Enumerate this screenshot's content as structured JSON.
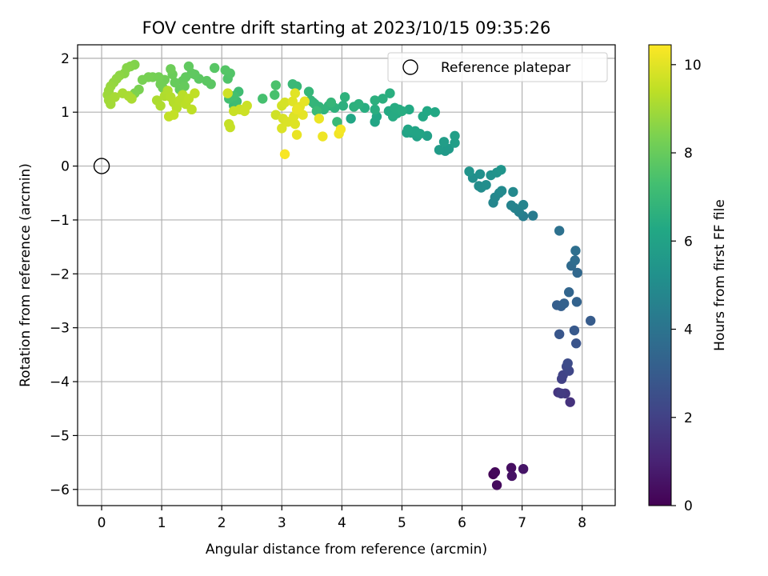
{
  "chart_data": {
    "type": "scatter",
    "title": "FOV centre drift starting at 2023/10/15 09:35:26",
    "xlabel": "Angular distance from reference (arcmin)",
    "ylabel": "Rotation from reference (arcmin)",
    "xlim": [
      -0.4,
      8.55
    ],
    "ylim": [
      -6.3,
      2.25
    ],
    "xticks": [
      "0",
      "1",
      "2",
      "3",
      "4",
      "5",
      "6",
      "7",
      "8"
    ],
    "yticks": [
      "2",
      "1",
      "0",
      "−1",
      "−2",
      "−3",
      "−4",
      "−5",
      "−6"
    ],
    "grid": true,
    "legend": {
      "position": "top-right",
      "label": "Reference platepar"
    },
    "reference_point": {
      "x": 0,
      "y": 0
    },
    "colorbar": {
      "label": "Hours from first FF file",
      "range": [
        0,
        10.45
      ],
      "ticks": [
        "0",
        "2",
        "4",
        "6",
        "8",
        "10"
      ],
      "colormap": "viridis",
      "colors": [
        "#440154",
        "#482475",
        "#414487",
        "#355f8d",
        "#2a788e",
        "#21918c",
        "#22a884",
        "#44bf70",
        "#7ad151",
        "#bddf26",
        "#fde725"
      ]
    },
    "points": [
      {
        "x": 6.52,
        "y": -5.72,
        "c": 0.1
      },
      {
        "x": 6.55,
        "y": -5.68,
        "c": 0.2
      },
      {
        "x": 6.58,
        "y": -5.92,
        "c": 0.3
      },
      {
        "x": 6.82,
        "y": -5.6,
        "c": 0.4
      },
      {
        "x": 6.83,
        "y": -5.75,
        "c": 0.5
      },
      {
        "x": 7.02,
        "y": -5.62,
        "c": 0.6
      },
      {
        "x": 7.8,
        "y": -4.38,
        "c": 1.5
      },
      {
        "x": 7.6,
        "y": -4.2,
        "c": 1.6
      },
      {
        "x": 7.72,
        "y": -4.22,
        "c": 1.7
      },
      {
        "x": 7.65,
        "y": -4.22,
        "c": 1.8
      },
      {
        "x": 7.66,
        "y": -3.95,
        "c": 2.0
      },
      {
        "x": 7.68,
        "y": -3.88,
        "c": 2.1
      },
      {
        "x": 7.78,
        "y": -3.8,
        "c": 2.2
      },
      {
        "x": 7.74,
        "y": -3.72,
        "c": 2.3
      },
      {
        "x": 7.76,
        "y": -3.66,
        "c": 2.4
      },
      {
        "x": 7.9,
        "y": -3.29,
        "c": 2.7
      },
      {
        "x": 7.62,
        "y": -3.12,
        "c": 2.8
      },
      {
        "x": 7.87,
        "y": -3.05,
        "c": 2.9
      },
      {
        "x": 8.14,
        "y": -2.87,
        "c": 3.0
      },
      {
        "x": 7.58,
        "y": -2.58,
        "c": 3.1
      },
      {
        "x": 7.65,
        "y": -2.6,
        "c": 3.15
      },
      {
        "x": 7.7,
        "y": -2.55,
        "c": 3.2
      },
      {
        "x": 7.91,
        "y": -2.52,
        "c": 3.3
      },
      {
        "x": 7.78,
        "y": -2.34,
        "c": 3.4
      },
      {
        "x": 7.92,
        "y": -1.98,
        "c": 3.5
      },
      {
        "x": 7.82,
        "y": -1.85,
        "c": 3.6
      },
      {
        "x": 7.88,
        "y": -1.75,
        "c": 3.7
      },
      {
        "x": 7.89,
        "y": -1.57,
        "c": 3.8
      },
      {
        "x": 7.62,
        "y": -1.2,
        "c": 3.9
      },
      {
        "x": 7.18,
        "y": -0.92,
        "c": 4.3
      },
      {
        "x": 7.02,
        "y": -0.93,
        "c": 4.4
      },
      {
        "x": 6.95,
        "y": -0.85,
        "c": 4.5
      },
      {
        "x": 6.88,
        "y": -0.78,
        "c": 4.6
      },
      {
        "x": 6.82,
        "y": -0.73,
        "c": 4.65
      },
      {
        "x": 7.02,
        "y": -0.72,
        "c": 4.7
      },
      {
        "x": 6.52,
        "y": -0.68,
        "c": 4.75
      },
      {
        "x": 6.55,
        "y": -0.58,
        "c": 4.8
      },
      {
        "x": 6.62,
        "y": -0.5,
        "c": 4.85
      },
      {
        "x": 6.85,
        "y": -0.48,
        "c": 4.9
      },
      {
        "x": 6.66,
        "y": -0.46,
        "c": 4.95
      },
      {
        "x": 6.32,
        "y": -0.4,
        "c": 5.0
      },
      {
        "x": 6.28,
        "y": -0.37,
        "c": 5.05
      },
      {
        "x": 6.4,
        "y": -0.35,
        "c": 5.1
      },
      {
        "x": 6.18,
        "y": -0.22,
        "c": 5.15
      },
      {
        "x": 6.3,
        "y": -0.15,
        "c": 5.2
      },
      {
        "x": 6.48,
        "y": -0.17,
        "c": 5.25
      },
      {
        "x": 6.58,
        "y": -0.12,
        "c": 5.3
      },
      {
        "x": 6.12,
        "y": -0.1,
        "c": 5.35
      },
      {
        "x": 6.65,
        "y": -0.07,
        "c": 5.4
      },
      {
        "x": 5.72,
        "y": 0.28,
        "c": 5.6
      },
      {
        "x": 5.78,
        "y": 0.32,
        "c": 5.65
      },
      {
        "x": 5.62,
        "y": 0.3,
        "c": 5.7
      },
      {
        "x": 5.7,
        "y": 0.45,
        "c": 5.75
      },
      {
        "x": 5.88,
        "y": 0.43,
        "c": 5.8
      },
      {
        "x": 5.88,
        "y": 0.56,
        "c": 5.85
      },
      {
        "x": 5.42,
        "y": 0.56,
        "c": 5.9
      },
      {
        "x": 5.25,
        "y": 0.55,
        "c": 5.95
      },
      {
        "x": 5.15,
        "y": 0.62,
        "c": 6.0
      },
      {
        "x": 5.08,
        "y": 0.62,
        "c": 6.05
      },
      {
        "x": 5.22,
        "y": 0.65,
        "c": 6.08
      },
      {
        "x": 5.3,
        "y": 0.6,
        "c": 6.1
      },
      {
        "x": 5.1,
        "y": 0.68,
        "c": 6.12
      },
      {
        "x": 4.55,
        "y": 0.82,
        "c": 6.15
      },
      {
        "x": 4.58,
        "y": 0.92,
        "c": 6.18
      },
      {
        "x": 4.15,
        "y": 0.88,
        "c": 6.2
      },
      {
        "x": 5.35,
        "y": 0.92,
        "c": 6.22
      },
      {
        "x": 5.55,
        "y": 1.0,
        "c": 6.25
      },
      {
        "x": 5.42,
        "y": 1.02,
        "c": 6.28
      },
      {
        "x": 5.12,
        "y": 1.05,
        "c": 6.3
      },
      {
        "x": 4.78,
        "y": 1.02,
        "c": 6.32
      },
      {
        "x": 4.92,
        "y": 0.98,
        "c": 6.35
      },
      {
        "x": 4.85,
        "y": 0.92,
        "c": 6.38
      },
      {
        "x": 4.95,
        "y": 1.05,
        "c": 6.4
      },
      {
        "x": 4.88,
        "y": 1.08,
        "c": 6.42
      },
      {
        "x": 5.0,
        "y": 1.02,
        "c": 6.45
      },
      {
        "x": 4.55,
        "y": 1.05,
        "c": 6.48
      },
      {
        "x": 4.38,
        "y": 1.08,
        "c": 6.5
      },
      {
        "x": 4.8,
        "y": 1.35,
        "c": 6.52
      },
      {
        "x": 4.68,
        "y": 1.25,
        "c": 6.55
      },
      {
        "x": 4.55,
        "y": 1.22,
        "c": 6.58
      },
      {
        "x": 4.02,
        "y": 1.12,
        "c": 6.6
      },
      {
        "x": 4.2,
        "y": 1.1,
        "c": 6.62
      },
      {
        "x": 4.28,
        "y": 1.15,
        "c": 6.65
      },
      {
        "x": 4.05,
        "y": 1.28,
        "c": 6.68
      },
      {
        "x": 3.88,
        "y": 1.08,
        "c": 6.7
      },
      {
        "x": 3.78,
        "y": 1.12,
        "c": 6.72
      },
      {
        "x": 3.7,
        "y": 1.05,
        "c": 6.75
      },
      {
        "x": 3.62,
        "y": 1.1,
        "c": 6.78
      },
      {
        "x": 3.55,
        "y": 1.15,
        "c": 6.8
      },
      {
        "x": 3.52,
        "y": 1.18,
        "c": 6.82
      },
      {
        "x": 3.48,
        "y": 1.22,
        "c": 6.85
      },
      {
        "x": 3.82,
        "y": 1.18,
        "c": 6.88
      },
      {
        "x": 3.45,
        "y": 1.38,
        "c": 6.9
      },
      {
        "x": 3.25,
        "y": 1.48,
        "c": 6.95
      },
      {
        "x": 3.18,
        "y": 1.52,
        "c": 7.0
      },
      {
        "x": 3.92,
        "y": 0.82,
        "c": 7.02
      },
      {
        "x": 3.58,
        "y": 1.02,
        "c": 7.05
      },
      {
        "x": 2.2,
        "y": 1.12,
        "c": 7.1
      },
      {
        "x": 2.25,
        "y": 1.2,
        "c": 7.15
      },
      {
        "x": 2.28,
        "y": 1.38,
        "c": 7.2
      },
      {
        "x": 2.12,
        "y": 1.25,
        "c": 7.25
      },
      {
        "x": 2.2,
        "y": 1.3,
        "c": 7.3
      },
      {
        "x": 2.68,
        "y": 1.25,
        "c": 7.35
      },
      {
        "x": 2.88,
        "y": 1.32,
        "c": 7.4
      },
      {
        "x": 2.9,
        "y": 1.5,
        "c": 7.45
      },
      {
        "x": 2.1,
        "y": 1.62,
        "c": 7.55
      },
      {
        "x": 2.14,
        "y": 1.72,
        "c": 7.6
      },
      {
        "x": 2.06,
        "y": 1.78,
        "c": 7.65
      },
      {
        "x": 1.88,
        "y": 1.82,
        "c": 7.7
      },
      {
        "x": 1.82,
        "y": 1.52,
        "c": 7.75
      },
      {
        "x": 1.75,
        "y": 1.58,
        "c": 7.78
      },
      {
        "x": 1.62,
        "y": 1.62,
        "c": 7.8
      },
      {
        "x": 1.55,
        "y": 1.7,
        "c": 7.82
      },
      {
        "x": 1.5,
        "y": 1.72,
        "c": 7.85
      },
      {
        "x": 1.45,
        "y": 1.85,
        "c": 7.88
      },
      {
        "x": 1.4,
        "y": 1.65,
        "c": 7.9
      },
      {
        "x": 1.35,
        "y": 1.58,
        "c": 7.92
      },
      {
        "x": 1.38,
        "y": 1.48,
        "c": 7.95
      },
      {
        "x": 1.3,
        "y": 1.42,
        "c": 7.98
      },
      {
        "x": 1.22,
        "y": 1.55,
        "c": 8.0
      },
      {
        "x": 1.18,
        "y": 1.7,
        "c": 8.05
      },
      {
        "x": 1.15,
        "y": 1.8,
        "c": 8.1
      },
      {
        "x": 1.05,
        "y": 1.6,
        "c": 8.15
      },
      {
        "x": 1.02,
        "y": 1.45,
        "c": 8.18
      },
      {
        "x": 0.98,
        "y": 1.52,
        "c": 8.2
      },
      {
        "x": 0.95,
        "y": 1.65,
        "c": 8.22
      },
      {
        "x": 0.85,
        "y": 1.65,
        "c": 8.25
      },
      {
        "x": 0.78,
        "y": 1.65,
        "c": 8.28
      },
      {
        "x": 0.68,
        "y": 1.6,
        "c": 8.3
      },
      {
        "x": 0.62,
        "y": 1.42,
        "c": 8.35
      },
      {
        "x": 0.55,
        "y": 1.35,
        "c": 8.4
      },
      {
        "x": 0.55,
        "y": 1.88,
        "c": 8.45
      },
      {
        "x": 0.48,
        "y": 1.85,
        "c": 8.5
      },
      {
        "x": 0.42,
        "y": 1.82,
        "c": 8.55
      },
      {
        "x": 0.38,
        "y": 1.72,
        "c": 8.6
      },
      {
        "x": 0.3,
        "y": 1.68,
        "c": 8.65
      },
      {
        "x": 0.25,
        "y": 1.62,
        "c": 8.7
      },
      {
        "x": 0.2,
        "y": 1.55,
        "c": 8.75
      },
      {
        "x": 0.15,
        "y": 1.48,
        "c": 8.8
      },
      {
        "x": 0.12,
        "y": 1.4,
        "c": 8.85
      },
      {
        "x": 0.1,
        "y": 1.32,
        "c": 8.9
      },
      {
        "x": 0.12,
        "y": 1.22,
        "c": 8.95
      },
      {
        "x": 0.15,
        "y": 1.15,
        "c": 9.0
      },
      {
        "x": 0.22,
        "y": 1.28,
        "c": 9.05
      },
      {
        "x": 0.35,
        "y": 1.35,
        "c": 9.08
      },
      {
        "x": 0.45,
        "y": 1.3,
        "c": 9.1
      },
      {
        "x": 0.5,
        "y": 1.25,
        "c": 9.12
      },
      {
        "x": 0.92,
        "y": 1.22,
        "c": 9.15
      },
      {
        "x": 0.98,
        "y": 1.12,
        "c": 9.18
      },
      {
        "x": 1.05,
        "y": 1.3,
        "c": 9.2
      },
      {
        "x": 1.1,
        "y": 1.4,
        "c": 9.22
      },
      {
        "x": 1.15,
        "y": 1.28,
        "c": 9.25
      },
      {
        "x": 1.2,
        "y": 1.18,
        "c": 9.28
      },
      {
        "x": 1.25,
        "y": 1.08,
        "c": 9.3
      },
      {
        "x": 1.3,
        "y": 1.22,
        "c": 9.32
      },
      {
        "x": 1.35,
        "y": 1.32,
        "c": 9.35
      },
      {
        "x": 1.4,
        "y": 1.15,
        "c": 9.38
      },
      {
        "x": 1.45,
        "y": 1.25,
        "c": 9.4
      },
      {
        "x": 1.5,
        "y": 1.05,
        "c": 9.42
      },
      {
        "x": 1.55,
        "y": 1.35,
        "c": 9.45
      },
      {
        "x": 1.12,
        "y": 0.92,
        "c": 9.48
      },
      {
        "x": 1.2,
        "y": 0.95,
        "c": 9.5
      },
      {
        "x": 2.12,
        "y": 0.78,
        "c": 9.52
      },
      {
        "x": 2.14,
        "y": 0.72,
        "c": 9.55
      },
      {
        "x": 2.2,
        "y": 1.02,
        "c": 9.58
      },
      {
        "x": 2.3,
        "y": 1.05,
        "c": 9.6
      },
      {
        "x": 2.42,
        "y": 1.12,
        "c": 9.62
      },
      {
        "x": 2.38,
        "y": 1.02,
        "c": 9.65
      },
      {
        "x": 2.1,
        "y": 1.35,
        "c": 9.68
      },
      {
        "x": 2.9,
        "y": 0.95,
        "c": 9.7
      },
      {
        "x": 3.0,
        "y": 1.12,
        "c": 9.75
      },
      {
        "x": 3.05,
        "y": 1.18,
        "c": 9.8
      },
      {
        "x": 3.02,
        "y": 0.88,
        "c": 9.85
      },
      {
        "x": 3.1,
        "y": 0.82,
        "c": 9.88
      },
      {
        "x": 3.0,
        "y": 0.7,
        "c": 9.9
      },
      {
        "x": 3.2,
        "y": 0.92,
        "c": 9.92
      },
      {
        "x": 3.22,
        "y": 0.78,
        "c": 9.95
      },
      {
        "x": 3.18,
        "y": 1.2,
        "c": 9.98
      },
      {
        "x": 3.22,
        "y": 1.35,
        "c": 10.0
      },
      {
        "x": 3.3,
        "y": 1.1,
        "c": 10.02
      },
      {
        "x": 3.35,
        "y": 0.95,
        "c": 10.05
      },
      {
        "x": 3.38,
        "y": 1.2,
        "c": 10.08
      },
      {
        "x": 3.25,
        "y": 1.05,
        "c": 10.1
      },
      {
        "x": 3.25,
        "y": 0.58,
        "c": 10.12
      },
      {
        "x": 3.62,
        "y": 0.88,
        "c": 10.15
      },
      {
        "x": 3.68,
        "y": 0.55,
        "c": 10.2
      },
      {
        "x": 3.95,
        "y": 0.6,
        "c": 10.25
      },
      {
        "x": 3.98,
        "y": 0.68,
        "c": 10.3
      },
      {
        "x": 3.05,
        "y": 0.22,
        "c": 10.35
      }
    ]
  }
}
